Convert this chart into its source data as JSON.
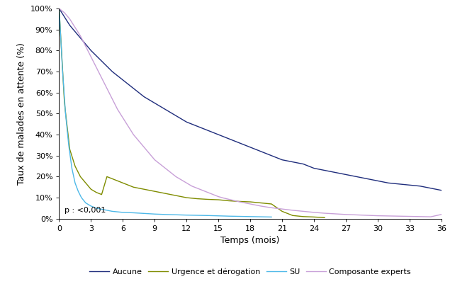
{
  "title": "",
  "xlabel": "Temps (mois)",
  "ylabel": "Taux de malades en attente (%)",
  "annotation": "p : <0,001",
  "xlim": [
    0,
    36
  ],
  "ylim": [
    0,
    100
  ],
  "xticks": [
    0,
    3,
    6,
    9,
    12,
    15,
    18,
    21,
    24,
    27,
    30,
    33,
    36
  ],
  "yticks": [
    0,
    10,
    20,
    30,
    40,
    50,
    60,
    70,
    80,
    90,
    100
  ],
  "ytick_labels": [
    "0%",
    "10%",
    "20%",
    "30%",
    "40%",
    "50%",
    "60%",
    "70%",
    "80%",
    "90%",
    "100%"
  ],
  "legend_labels": [
    "Aucune",
    "Urgence et dérogation",
    "SU",
    "Composante experts"
  ],
  "colors": {
    "Aucune": "#1f2d7c",
    "Urgence": "#7f8c00",
    "SU": "#4db8e8",
    "Composante": "#c8a0d8"
  },
  "curves": {
    "Aucune": {
      "x": [
        0,
        1,
        2,
        3,
        4,
        5,
        6,
        7,
        8,
        9,
        10,
        11,
        12,
        13,
        14,
        15,
        16,
        17,
        18,
        19,
        20,
        21,
        22,
        23,
        24,
        25,
        26,
        27,
        28,
        29,
        30,
        31,
        32,
        33,
        34,
        35,
        36
      ],
      "y": [
        100,
        92,
        86,
        80,
        75,
        70,
        66,
        62,
        58,
        55,
        52,
        49,
        46,
        44,
        42,
        40,
        38,
        36,
        34,
        32,
        30,
        28,
        27,
        26,
        24,
        23,
        22,
        21,
        20,
        19,
        18,
        17,
        16.5,
        16,
        15.5,
        14.5,
        13.5
      ]
    },
    "Urgence": {
      "x": [
        0,
        0.5,
        1,
        1.5,
        2,
        2.5,
        3,
        3.5,
        4,
        4.5,
        5,
        5.5,
        6,
        6.5,
        7,
        7.5,
        8,
        8.5,
        9,
        9.5,
        10,
        10.5,
        11,
        11.5,
        12,
        13,
        14,
        15,
        16,
        17,
        18,
        19,
        20,
        21,
        22,
        23,
        24,
        25
      ],
      "y": [
        100,
        55,
        33,
        25,
        20,
        17,
        14,
        12.5,
        11.5,
        20,
        19,
        18,
        17,
        16,
        15,
        14.5,
        14,
        13.5,
        13,
        12.5,
        12,
        11.5,
        11,
        10.5,
        10,
        9.5,
        9.2,
        9.0,
        8.5,
        8.2,
        8.0,
        7.5,
        7.0,
        3.5,
        1.5,
        1.0,
        0.8,
        0.5
      ]
    },
    "SU": {
      "x": [
        0,
        0.3,
        0.6,
        0.9,
        1.2,
        1.5,
        1.8,
        2.1,
        2.5,
        3,
        3.5,
        4,
        5,
        6,
        7,
        8,
        9,
        10,
        12,
        14,
        16,
        18,
        19,
        20
      ],
      "y": [
        100,
        72,
        50,
        35,
        24,
        17,
        13,
        10,
        7.5,
        6,
        5,
        4.5,
        3.5,
        3.0,
        2.8,
        2.5,
        2.2,
        2.0,
        1.7,
        1.5,
        1.2,
        1.0,
        0.9,
        0.8
      ]
    },
    "Composante": {
      "x": [
        0,
        0.5,
        1,
        1.5,
        2,
        2.5,
        3,
        3.5,
        4,
        4.5,
        5,
        5.5,
        6,
        6.5,
        7,
        7.5,
        8,
        8.5,
        9,
        9.5,
        10,
        10.5,
        11,
        11.5,
        12,
        12.5,
        13,
        13.5,
        14,
        14.5,
        15,
        15.5,
        16,
        16.5,
        17,
        17.5,
        18,
        18.5,
        19,
        19.5,
        20,
        20.5,
        21,
        22,
        23,
        24,
        25,
        26,
        27,
        28,
        29,
        30,
        31,
        32,
        33,
        34,
        35,
        36
      ],
      "y": [
        100,
        98,
        95,
        91,
        87,
        82,
        77,
        72,
        67,
        62,
        57,
        52,
        48,
        44,
        40,
        37,
        34,
        31,
        28,
        26,
        24,
        22,
        20,
        18.5,
        17,
        15.5,
        14.5,
        13.5,
        12.5,
        11.5,
        10.5,
        9.8,
        9.2,
        8.6,
        8.0,
        7.5,
        7.0,
        6.5,
        6.0,
        5.6,
        5.2,
        4.9,
        4.6,
        4.0,
        3.5,
        3.0,
        2.6,
        2.3,
        2.0,
        1.8,
        1.6,
        1.4,
        1.3,
        1.2,
        1.1,
        1.0,
        0.9,
        2.0
      ]
    }
  },
  "background_color": "#ffffff",
  "line_width": 1.0
}
